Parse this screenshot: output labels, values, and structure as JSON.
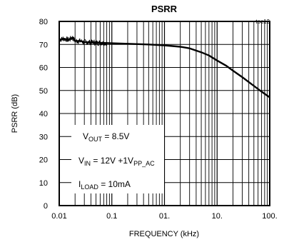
{
  "chart_data": {
    "type": "line",
    "title": "PSRR",
    "figure_id": "toc12",
    "xlabel": "FREQUENCY (kHz)",
    "ylabel": "PSRR (dB)",
    "x_scale": "log",
    "xlim": [
      0.01,
      100
    ],
    "ylim": [
      0,
      80
    ],
    "grid": true,
    "x_ticks": [
      0.01,
      0.1,
      1,
      10,
      100
    ],
    "x_tick_labels": [
      "0.01",
      "0.1",
      "01.",
      "10.",
      "100."
    ],
    "y_ticks": [
      0,
      10,
      20,
      30,
      40,
      50,
      60,
      70,
      80
    ],
    "y_tick_labels": [
      "0",
      "10",
      "20",
      "30",
      "40",
      "50",
      "60",
      "70",
      "80"
    ],
    "series": [
      {
        "x": [
          0.01,
          0.012,
          0.015,
          0.018,
          0.02,
          0.025,
          0.03,
          0.05,
          0.1,
          0.2,
          0.5,
          1,
          2,
          3,
          5,
          7,
          10,
          15,
          20,
          30,
          50,
          70,
          100
        ],
        "y": [
          72,
          72.5,
          72,
          73,
          71.5,
          71.5,
          71,
          70.8,
          70.5,
          70.3,
          70,
          69.6,
          69,
          68.3,
          66.6,
          65.2,
          63,
          60.7,
          58.6,
          55.8,
          52,
          49.5,
          47
        ]
      }
    ],
    "annotations": [
      {
        "main": "V",
        "sub": "OUT",
        "rest": " = 8.5V"
      },
      {
        "main": "V",
        "sub": "IN",
        "rest": " = 12V +1V",
        "sub2": "PP_AC"
      },
      {
        "main": "I",
        "sub": "LOAD",
        "rest": " = 10mA"
      }
    ]
  }
}
